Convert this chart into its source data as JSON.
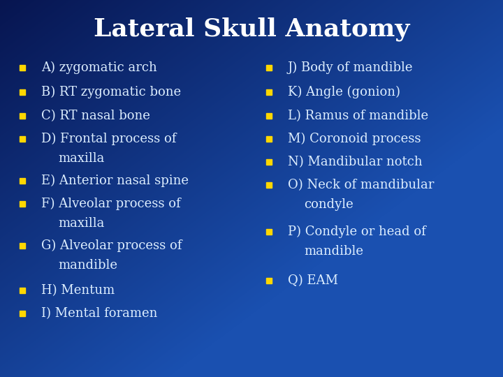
{
  "title": "Lateral Skull Anatomy",
  "title_color": "#FFFFFF",
  "title_fontsize": 26,
  "background_topleft": "#071550",
  "background_center": "#1a50b0",
  "background_bottomright": "#1a50b0",
  "bullet_color": "#FFD700",
  "text_color": "#DDEEFF",
  "left_items": [
    [
      "A) zygomatic arch",
      false
    ],
    [
      "B) RT zygomatic bone",
      false
    ],
    [
      "C) RT nasal bone",
      false
    ],
    [
      "D) Frontal process of",
      true
    ],
    [
      "   maxilla",
      false
    ],
    [
      "E) Anterior nasal spine",
      false
    ],
    [
      "F) Alveolar process of",
      true
    ],
    [
      "   maxilla",
      false
    ],
    [
      "G) Alveolar process of",
      true
    ],
    [
      "   mandible",
      false
    ],
    [
      "H) Mentum",
      false
    ],
    [
      "I) Mental foramen",
      false
    ]
  ],
  "right_items": [
    [
      "J) Body of mandible",
      false
    ],
    [
      "K) Angle (gonion)",
      false
    ],
    [
      "L) Ramus of mandible",
      false
    ],
    [
      "M) Coronoid process",
      false
    ],
    [
      "N) Mandibular notch",
      false
    ],
    [
      "O) Neck of mandibular",
      true
    ],
    [
      "   condyle",
      false
    ],
    [
      "P) Condyle or head of",
      true
    ],
    [
      "   mandible",
      false
    ],
    [
      "Q) EAM",
      false
    ]
  ],
  "text_fontsize": 13,
  "figwidth": 7.2,
  "figheight": 5.4,
  "dpi": 100
}
